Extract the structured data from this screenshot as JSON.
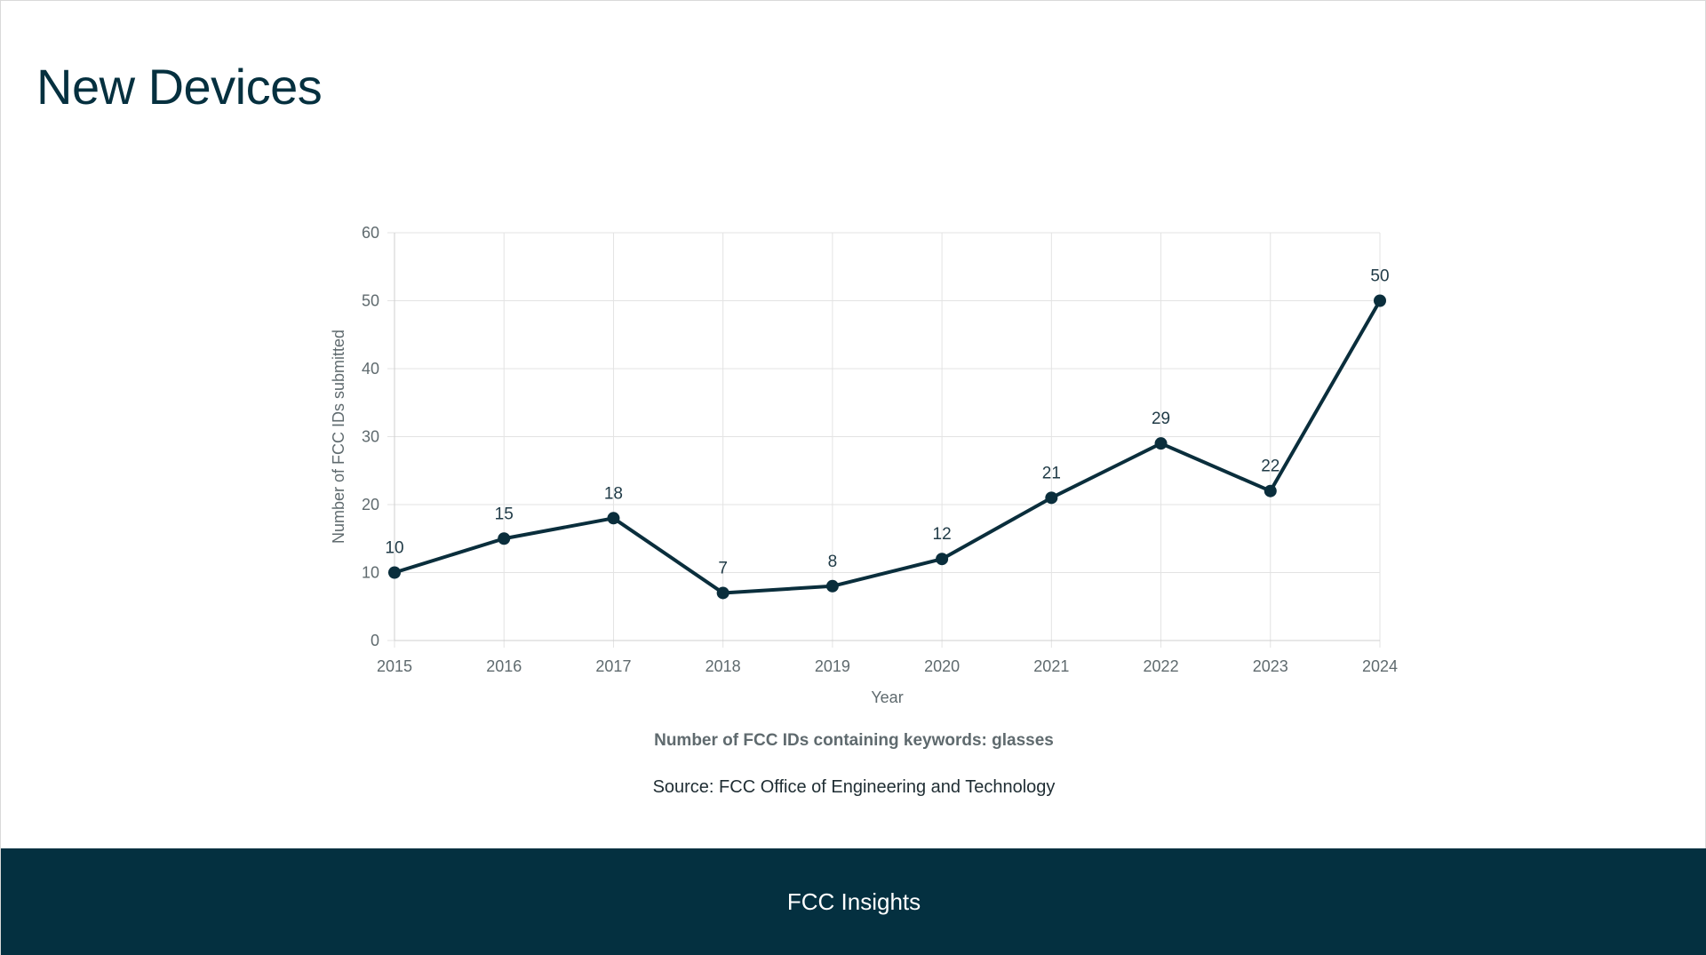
{
  "page": {
    "title": "New Devices"
  },
  "chart_data": {
    "type": "line",
    "title": "Number of FCC IDs containing keywords: glasses",
    "source": "Source: FCC Office of Engineering and Technology",
    "xlabel": "Year",
    "ylabel": "Number of FCC IDs submitted",
    "categories": [
      "2015",
      "2016",
      "2017",
      "2018",
      "2019",
      "2020",
      "2021",
      "2022",
      "2023",
      "2024"
    ],
    "values": [
      10,
      15,
      18,
      7,
      8,
      12,
      21,
      29,
      22,
      50
    ],
    "ylim": [
      0,
      60
    ],
    "yticks": [
      0,
      10,
      20,
      30,
      40,
      50,
      60
    ],
    "grid": true,
    "data_labels": true
  },
  "colors": {
    "line": "#0a2e3c",
    "grid": "#e3e3e3",
    "axis_text": "#5f6a6e",
    "footer_bg": "#043040"
  },
  "footer": {
    "label": "FCC Insights"
  }
}
